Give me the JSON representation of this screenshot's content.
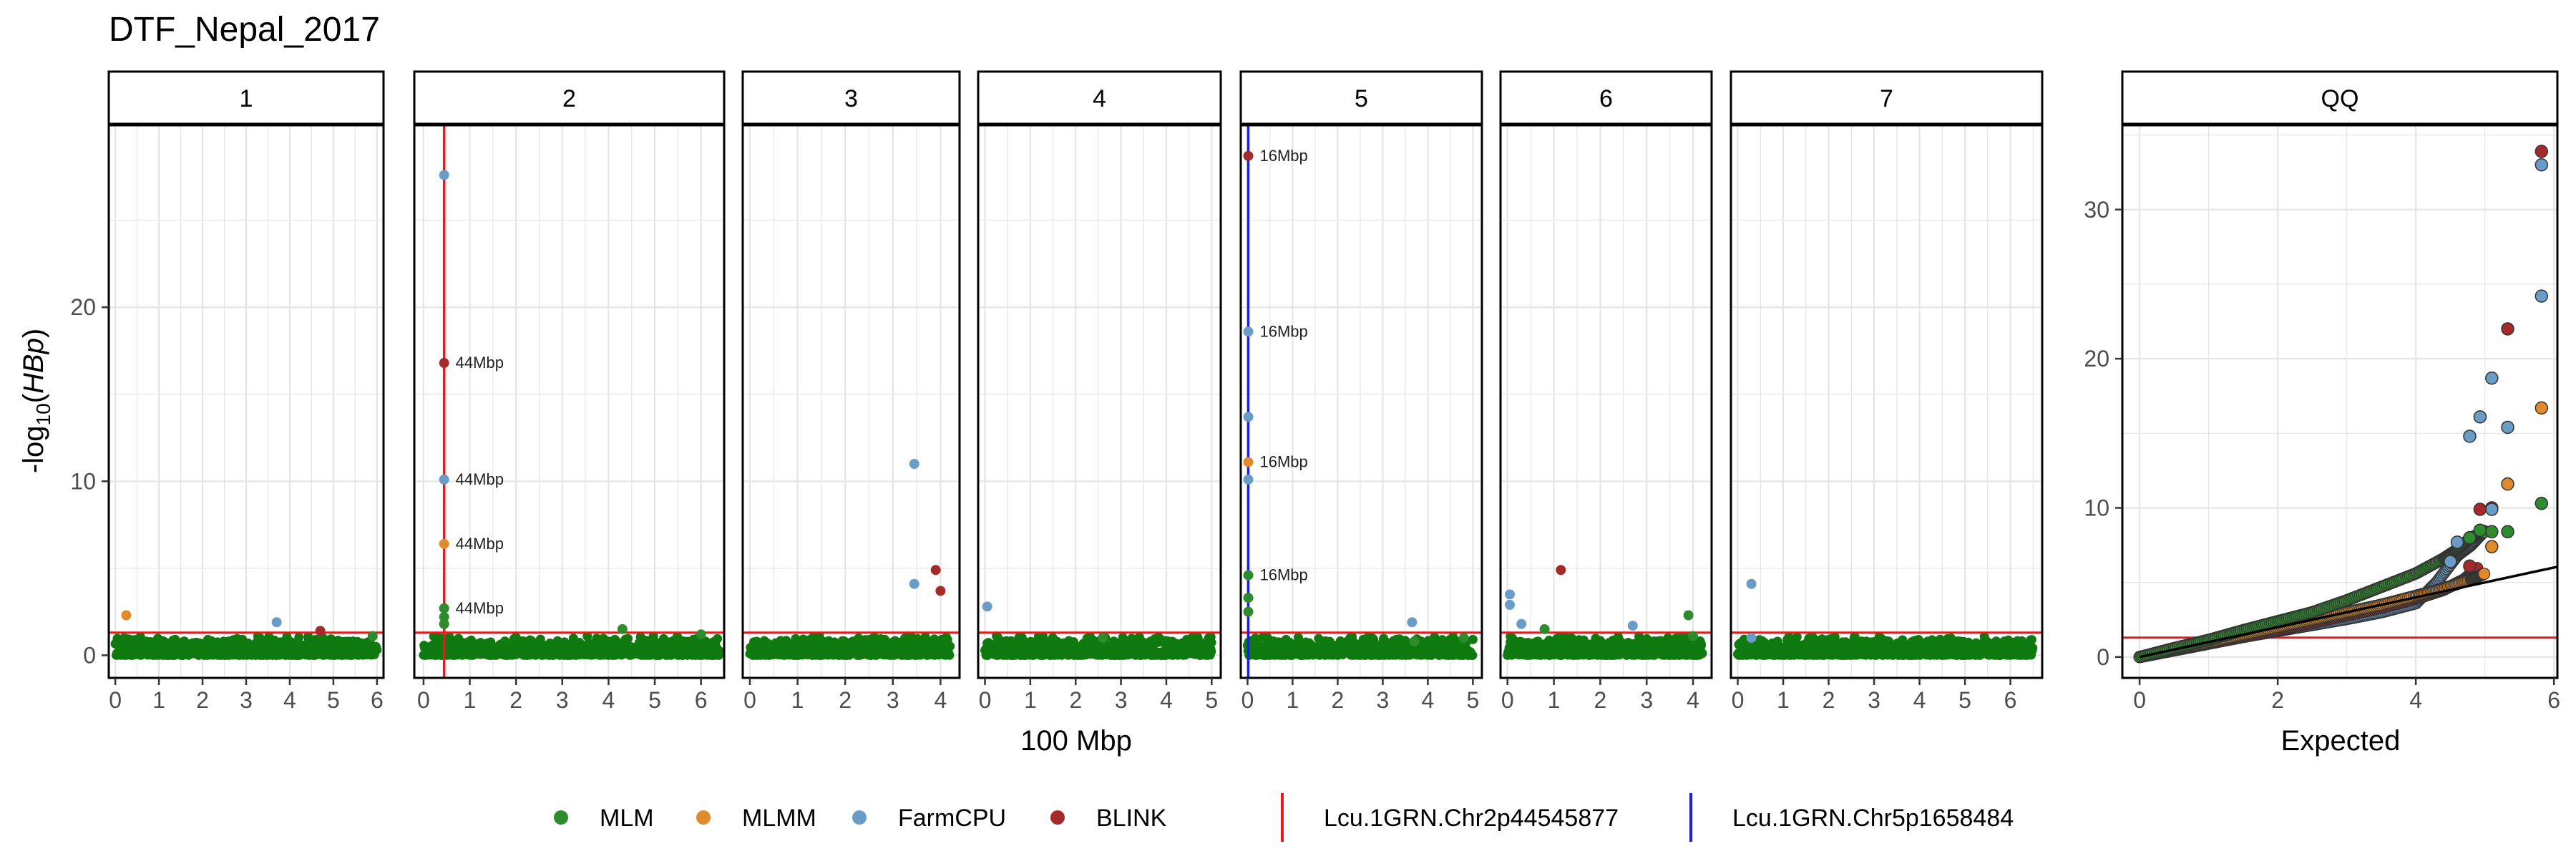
{
  "figure_title": "DTF_Nepal_2017",
  "colors": {
    "MLM": "#2e8b2e",
    "MLMM": "#e08a2c",
    "FarmCPU": "#6a9cc8",
    "BLINK": "#a52a2a",
    "background_points": "#0f7a0f",
    "threshold": "#e41a1c",
    "chr2_marker": "#e41a1c",
    "chr5_marker": "#1a1aff",
    "grid": "#e5e5e5",
    "qq_line": "#000000"
  },
  "legend": {
    "methods": [
      "MLM",
      "MLMM",
      "FarmCPU",
      "BLINK"
    ],
    "markers": [
      {
        "name": "Lcu.1GRN.Chr2p44545877",
        "color": "chr2_marker"
      },
      {
        "name": "Lcu.1GRN.Chr5p1658484",
        "color": "chr5_marker"
      }
    ]
  },
  "chart_data": [
    {
      "type": "scatter",
      "kind": "manhattan",
      "xlabel": "100 Mbp",
      "ylabel_prefix": "-log",
      "ylabel_sub": "10",
      "ylabel_var": "HBp",
      "ylim": [
        -1.3,
        30.5
      ],
      "yticks": [
        0,
        10,
        20
      ],
      "threshold_y": 1.3,
      "grid": true,
      "panels": [
        {
          "label": "1",
          "xlim": [
            -0.15,
            6.15
          ],
          "xticks": [
            0,
            1,
            2,
            3,
            4,
            5,
            6
          ],
          "length": 6.0,
          "vline": null,
          "points": [
            {
              "x": 0.25,
              "y": 2.3,
              "method": "MLMM"
            },
            {
              "x": 3.7,
              "y": 1.9,
              "method": "FarmCPU"
            },
            {
              "x": 4.7,
              "y": 1.4,
              "method": "BLINK"
            },
            {
              "x": 5.9,
              "y": 1.1,
              "method": "MLM"
            }
          ]
        },
        {
          "label": "2",
          "xlim": [
            -0.2,
            6.5
          ],
          "xticks": [
            0,
            1,
            2,
            3,
            4,
            5,
            6
          ],
          "length": 6.4,
          "vline": {
            "x": 0.445,
            "color": "chr2_marker"
          },
          "points": [
            {
              "x": 0.445,
              "y": 27.6,
              "method": "FarmCPU"
            },
            {
              "x": 0.445,
              "y": 16.8,
              "method": "BLINK",
              "label": "44Mbp"
            },
            {
              "x": 0.445,
              "y": 10.1,
              "method": "FarmCPU",
              "label": "44Mbp"
            },
            {
              "x": 0.445,
              "y": 6.4,
              "method": "MLMM",
              "label": "44Mbp"
            },
            {
              "x": 0.445,
              "y": 2.7,
              "method": "MLM",
              "label": "44Mbp"
            },
            {
              "x": 0.445,
              "y": 2.2,
              "method": "MLM"
            },
            {
              "x": 0.445,
              "y": 1.8,
              "method": "MLM"
            },
            {
              "x": 4.3,
              "y": 1.5,
              "method": "MLM"
            },
            {
              "x": 6.0,
              "y": 1.2,
              "method": "MLM"
            }
          ]
        },
        {
          "label": "3",
          "xlim": [
            -0.15,
            4.4
          ],
          "xticks": [
            0,
            1,
            2,
            3,
            4
          ],
          "length": 4.2,
          "vline": null,
          "points": [
            {
              "x": 3.45,
              "y": 11.0,
              "method": "FarmCPU"
            },
            {
              "x": 3.9,
              "y": 4.9,
              "method": "BLINK"
            },
            {
              "x": 3.45,
              "y": 4.1,
              "method": "FarmCPU"
            },
            {
              "x": 4.0,
              "y": 3.7,
              "method": "BLINK"
            }
          ]
        },
        {
          "label": "4",
          "xlim": [
            -0.15,
            5.2
          ],
          "xticks": [
            0,
            1,
            2,
            3,
            4,
            5
          ],
          "length": 5.0,
          "vline": null,
          "points": [
            {
              "x": 0.05,
              "y": 2.8,
              "method": "FarmCPU"
            },
            {
              "x": 2.6,
              "y": 1.0,
              "method": "MLM"
            }
          ]
        },
        {
          "label": "5",
          "xlim": [
            -0.15,
            5.2
          ],
          "xticks": [
            0,
            1,
            2,
            3,
            4,
            5
          ],
          "length": 5.0,
          "vline": {
            "x": 0.0166,
            "color": "chr5_marker"
          },
          "points": [
            {
              "x": 0.0166,
              "y": 28.7,
              "method": "BLINK",
              "label": "16Mbp"
            },
            {
              "x": 0.0166,
              "y": 18.6,
              "method": "FarmCPU",
              "label": "16Mbp"
            },
            {
              "x": 0.0166,
              "y": 13.7,
              "method": "FarmCPU"
            },
            {
              "x": 0.0166,
              "y": 11.1,
              "method": "MLMM",
              "label": "16Mbp"
            },
            {
              "x": 0.0166,
              "y": 10.1,
              "method": "FarmCPU"
            },
            {
              "x": 0.0166,
              "y": 4.6,
              "method": "MLM",
              "label": "16Mbp"
            },
            {
              "x": 0.0166,
              "y": 3.3,
              "method": "MLM"
            },
            {
              "x": 0.0166,
              "y": 2.5,
              "method": "MLM"
            },
            {
              "x": 3.65,
              "y": 1.9,
              "method": "FarmCPU"
            },
            {
              "x": 3.7,
              "y": 0.8,
              "method": "MLM"
            },
            {
              "x": 4.8,
              "y": 1.0,
              "method": "MLM"
            }
          ]
        },
        {
          "label": "6",
          "xlim": [
            -0.15,
            4.4
          ],
          "xticks": [
            0,
            1,
            2,
            3,
            4
          ],
          "length": 4.2,
          "vline": null,
          "points": [
            {
              "x": 0.05,
              "y": 3.5,
              "method": "FarmCPU"
            },
            {
              "x": 0.05,
              "y": 2.9,
              "method": "FarmCPU"
            },
            {
              "x": 0.3,
              "y": 1.8,
              "method": "FarmCPU"
            },
            {
              "x": 0.8,
              "y": 1.5,
              "method": "MLM"
            },
            {
              "x": 1.15,
              "y": 4.9,
              "method": "BLINK"
            },
            {
              "x": 2.7,
              "y": 1.7,
              "method": "FarmCPU"
            },
            {
              "x": 3.9,
              "y": 2.3,
              "method": "MLM"
            },
            {
              "x": 4.0,
              "y": 1.1,
              "method": "MLM"
            }
          ]
        },
        {
          "label": "7",
          "xlim": [
            -0.15,
            6.7
          ],
          "xticks": [
            0,
            1,
            2,
            3,
            4,
            5,
            6
          ],
          "length": 6.5,
          "vline": null,
          "points": [
            {
              "x": 0.3,
              "y": 4.1,
              "method": "FarmCPU"
            },
            {
              "x": 0.3,
              "y": 1.0,
              "method": "FarmCPU"
            }
          ]
        }
      ]
    },
    {
      "type": "scatter",
      "kind": "qq",
      "label": "QQ",
      "xlabel": "Expected",
      "xlim": [
        -0.25,
        6.05
      ],
      "ylim": [
        -1.4,
        35.7
      ],
      "xticks": [
        0,
        2,
        4,
        6
      ],
      "yticks": [
        0,
        10,
        20,
        30
      ],
      "threshold_y": 1.3,
      "diagonal": {
        "x0": 0,
        "y0": 0,
        "x1": 6.05,
        "y1": 6.05
      },
      "grid": true,
      "curves": [
        {
          "method": "MLM",
          "points": [
            [
              0,
              0
            ],
            [
              0.5,
              0.6
            ],
            [
              1,
              1.15
            ],
            [
              1.5,
              1.8
            ],
            [
              2,
              2.4
            ],
            [
              2.5,
              3.0
            ],
            [
              3,
              3.8
            ],
            [
              3.5,
              4.7
            ],
            [
              4,
              5.6
            ],
            [
              4.4,
              6.6
            ],
            [
              4.6,
              7.2
            ],
            [
              4.8,
              8.0
            ],
            [
              5.0,
              8.4
            ]
          ]
        },
        {
          "method": "MLMM",
          "points": [
            [
              0,
              0
            ],
            [
              0.5,
              0.5
            ],
            [
              1,
              1.0
            ],
            [
              1.5,
              1.5
            ],
            [
              2,
              2.0
            ],
            [
              2.5,
              2.5
            ],
            [
              3,
              3.0
            ],
            [
              3.5,
              3.5
            ],
            [
              4,
              4.1
            ],
            [
              4.4,
              4.6
            ],
            [
              4.8,
              5.2
            ],
            [
              5.0,
              5.6
            ]
          ]
        },
        {
          "method": "FarmCPU",
          "points": [
            [
              0,
              0
            ],
            [
              0.5,
              0.45
            ],
            [
              1,
              0.9
            ],
            [
              1.5,
              1.35
            ],
            [
              2,
              1.75
            ],
            [
              2.5,
              2.15
            ],
            [
              3,
              2.55
            ],
            [
              3.5,
              3.0
            ],
            [
              4,
              3.6
            ],
            [
              4.3,
              5.0
            ],
            [
              4.6,
              6.8
            ],
            [
              4.8,
              7.5
            ],
            [
              5.0,
              8.5
            ]
          ]
        },
        {
          "method": "BLINK",
          "points": [
            [
              0,
              0
            ],
            [
              0.5,
              0.45
            ],
            [
              1,
              0.9
            ],
            [
              1.5,
              1.35
            ],
            [
              2,
              1.8
            ],
            [
              2.5,
              2.3
            ],
            [
              3,
              2.8
            ],
            [
              3.5,
              3.3
            ],
            [
              4,
              3.9
            ],
            [
              4.4,
              4.5
            ],
            [
              4.7,
              5.2
            ],
            [
              4.9,
              6.0
            ]
          ]
        }
      ],
      "points": [
        {
          "x": 5.82,
          "y": 33.9,
          "method": "BLINK"
        },
        {
          "x": 5.82,
          "y": 33.0,
          "method": "FarmCPU"
        },
        {
          "x": 5.82,
          "y": 24.2,
          "method": "FarmCPU"
        },
        {
          "x": 5.82,
          "y": 16.7,
          "method": "MLMM"
        },
        {
          "x": 5.82,
          "y": 10.3,
          "method": "MLM"
        },
        {
          "x": 5.33,
          "y": 22.0,
          "method": "BLINK"
        },
        {
          "x": 5.33,
          "y": 15.4,
          "method": "FarmCPU"
        },
        {
          "x": 5.33,
          "y": 11.6,
          "method": "MLMM"
        },
        {
          "x": 5.33,
          "y": 8.4,
          "method": "MLM"
        },
        {
          "x": 5.1,
          "y": 18.7,
          "method": "FarmCPU"
        },
        {
          "x": 5.1,
          "y": 10.0,
          "method": "BLINK"
        },
        {
          "x": 5.1,
          "y": 9.9,
          "method": "FarmCPU"
        },
        {
          "x": 5.1,
          "y": 8.4,
          "method": "MLM"
        },
        {
          "x": 5.1,
          "y": 7.4,
          "method": "MLMM"
        },
        {
          "x": 4.93,
          "y": 16.1,
          "method": "FarmCPU"
        },
        {
          "x": 4.93,
          "y": 9.9,
          "method": "BLINK"
        },
        {
          "x": 4.93,
          "y": 8.5,
          "method": "MLM"
        },
        {
          "x": 4.78,
          "y": 14.8,
          "method": "FarmCPU"
        },
        {
          "x": 4.78,
          "y": 6.1,
          "method": "BLINK"
        },
        {
          "x": 4.78,
          "y": 8.0,
          "method": "MLM"
        },
        {
          "x": 4.6,
          "y": 7.7,
          "method": "FarmCPU"
        },
        {
          "x": 4.5,
          "y": 6.4,
          "method": "FarmCPU"
        }
      ]
    }
  ]
}
